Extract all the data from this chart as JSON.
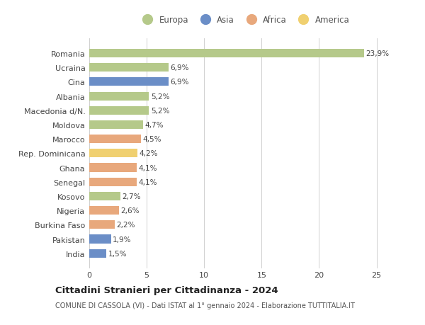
{
  "countries": [
    "Romania",
    "Ucraina",
    "Cina",
    "Albania",
    "Macedonia d/N.",
    "Moldova",
    "Marocco",
    "Rep. Dominicana",
    "Ghana",
    "Senegal",
    "Kosovo",
    "Nigeria",
    "Burkina Faso",
    "Pakistan",
    "India"
  ],
  "values": [
    23.9,
    6.9,
    6.9,
    5.2,
    5.2,
    4.7,
    4.5,
    4.2,
    4.1,
    4.1,
    2.7,
    2.6,
    2.2,
    1.9,
    1.5
  ],
  "labels": [
    "23,9%",
    "6,9%",
    "6,9%",
    "5,2%",
    "5,2%",
    "4,7%",
    "4,5%",
    "4,2%",
    "4,1%",
    "4,1%",
    "2,7%",
    "2,6%",
    "2,2%",
    "1,9%",
    "1,5%"
  ],
  "colors": [
    "#b5c98a",
    "#b5c98a",
    "#6b8ec7",
    "#b5c98a",
    "#b5c98a",
    "#b5c98a",
    "#e8a87c",
    "#f0d070",
    "#e8a87c",
    "#e8a87c",
    "#b5c98a",
    "#e8a87c",
    "#e8a87c",
    "#6b8ec7",
    "#6b8ec7"
  ],
  "continent_colors": {
    "Europa": "#b5c98a",
    "Asia": "#6b8ec7",
    "Africa": "#e8a87c",
    "America": "#f0d070"
  },
  "legend_labels": [
    "Europa",
    "Asia",
    "Africa",
    "America"
  ],
  "xlim": [
    0,
    27
  ],
  "xticks": [
    0,
    5,
    10,
    15,
    20,
    25
  ],
  "title": "Cittadini Stranieri per Cittadinanza - 2024",
  "subtitle": "COMUNE DI CASSOLA (VI) - Dati ISTAT al 1° gennaio 2024 - Elaborazione TUTTITALIA.IT",
  "bg_color": "#ffffff",
  "grid_color": "#d0d0d0",
  "bar_height": 0.6
}
